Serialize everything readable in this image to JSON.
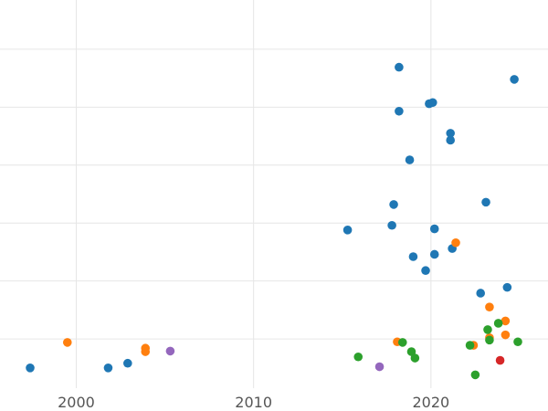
{
  "chart_data": {
    "type": "scatter",
    "title": "",
    "xlabel": "",
    "ylabel": "",
    "grid": true,
    "legend": "none",
    "xlim": [
      1995.7,
      2026.6
    ],
    "ylim": [
      -0.35,
      6.35
    ],
    "x_ticks": [
      2000,
      2010,
      2020
    ],
    "x_tick_labels": [
      "2000",
      "2010",
      "2020"
    ],
    "y_ticks": [
      0.5,
      1.5,
      2.5,
      3.5,
      4.5,
      5.5
    ],
    "series": [
      {
        "color": "#1f77b4",
        "points": [
          {
            "x": 1997.4,
            "y": 0.0
          },
          {
            "x": 2001.8,
            "y": 0.0
          },
          {
            "x": 2002.9,
            "y": 0.08
          },
          {
            "x": 2015.3,
            "y": 2.38
          },
          {
            "x": 2017.8,
            "y": 2.46
          },
          {
            "x": 2017.9,
            "y": 2.82
          },
          {
            "x": 2018.2,
            "y": 4.43
          },
          {
            "x": 2018.2,
            "y": 5.19
          },
          {
            "x": 2018.8,
            "y": 3.59
          },
          {
            "x": 2019.0,
            "y": 1.92
          },
          {
            "x": 2019.7,
            "y": 1.68
          },
          {
            "x": 2019.9,
            "y": 4.56
          },
          {
            "x": 2020.1,
            "y": 4.58
          },
          {
            "x": 2020.2,
            "y": 2.4
          },
          {
            "x": 2020.2,
            "y": 1.96
          },
          {
            "x": 2021.1,
            "y": 4.05
          },
          {
            "x": 2021.1,
            "y": 3.93
          },
          {
            "x": 2021.2,
            "y": 2.06
          },
          {
            "x": 2022.8,
            "y": 1.29
          },
          {
            "x": 2023.1,
            "y": 2.86
          },
          {
            "x": 2024.3,
            "y": 1.39
          },
          {
            "x": 2024.7,
            "y": 4.98
          }
        ]
      },
      {
        "color": "#ff7f0e",
        "points": [
          {
            "x": 1999.5,
            "y": 0.44
          },
          {
            "x": 2003.9,
            "y": 0.34
          },
          {
            "x": 2003.9,
            "y": 0.28
          },
          {
            "x": 2018.1,
            "y": 0.45
          },
          {
            "x": 2021.4,
            "y": 2.16
          },
          {
            "x": 2022.4,
            "y": 0.39
          },
          {
            "x": 2023.3,
            "y": 1.05
          },
          {
            "x": 2023.3,
            "y": 0.52
          },
          {
            "x": 2024.2,
            "y": 0.81
          },
          {
            "x": 2024.2,
            "y": 0.57
          }
        ]
      },
      {
        "color": "#2ca02c",
        "points": [
          {
            "x": 2015.9,
            "y": 0.19
          },
          {
            "x": 2018.4,
            "y": 0.44
          },
          {
            "x": 2018.9,
            "y": 0.28
          },
          {
            "x": 2019.1,
            "y": 0.17
          },
          {
            "x": 2022.2,
            "y": 0.39
          },
          {
            "x": 2022.5,
            "y": -0.12
          },
          {
            "x": 2023.2,
            "y": 0.66
          },
          {
            "x": 2023.3,
            "y": 0.48
          },
          {
            "x": 2023.8,
            "y": 0.77
          },
          {
            "x": 2024.9,
            "y": 0.45
          }
        ]
      },
      {
        "color": "#d62728",
        "points": [
          {
            "x": 2023.9,
            "y": 0.13
          }
        ]
      },
      {
        "color": "#9467bd",
        "points": [
          {
            "x": 2005.3,
            "y": 0.29
          },
          {
            "x": 2017.1,
            "y": 0.02
          }
        ]
      }
    ]
  }
}
